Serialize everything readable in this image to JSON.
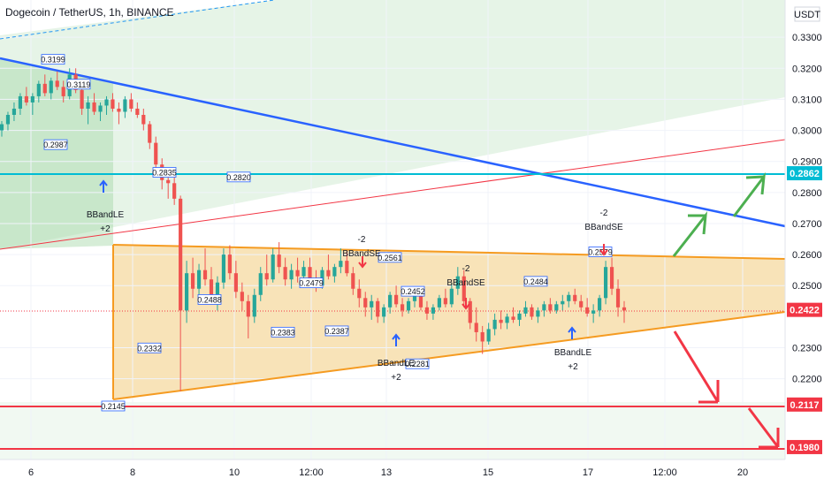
{
  "header": {
    "title": "Dogecoin / TetherUS, 1h, BINANCE",
    "currency": "USDT"
  },
  "colors": {
    "up": "#26a69a",
    "down": "#ef5350",
    "triangle_fill": "#f5d9a0",
    "triangle_edge": "#f59b21",
    "channel_fill": "#d8eed2",
    "blue_line": "#2962ff",
    "cyan_line": "#00bcd4",
    "red_level": "#f23645",
    "green_arrow": "#4caf50",
    "red_arrow": "#f23645",
    "label_border": "#2962ff"
  },
  "chart_data": {
    "type": "candlestick",
    "title": "Dogecoin / TetherUS, 1h, BINANCE",
    "ylim": [
      0.194,
      0.342
    ],
    "y_ticks": [
      "0.3300",
      "0.3200",
      "0.3100",
      "0.3000",
      "0.2900",
      "0.2800",
      "0.2700",
      "0.2600",
      "0.2500",
      "0.2300",
      "0.2200"
    ],
    "x_ticks": [
      "6",
      "8",
      "10",
      "12:00",
      "13",
      "15",
      "17",
      "12:00",
      "20"
    ],
    "price_tags": [
      {
        "label": "0.2862",
        "value": 0.2862,
        "color": "#00bcd4"
      },
      {
        "label": "0.2422",
        "value": 0.2422,
        "color": "#f23645"
      },
      {
        "label": "0.2117",
        "value": 0.2117,
        "color": "#f23645"
      },
      {
        "label": "0.1980",
        "value": 0.198,
        "color": "#f23645"
      }
    ],
    "price_labels": [
      {
        "text": "0.3199",
        "value": 0.3199
      },
      {
        "text": "0.3119",
        "value": 0.3119
      },
      {
        "text": "0.2987",
        "value": 0.2987
      },
      {
        "text": "0.2835",
        "value": 0.2835
      },
      {
        "text": "0.2820",
        "value": 0.282
      },
      {
        "text": "0.2488",
        "value": 0.2488
      },
      {
        "text": "0.2332",
        "value": 0.2332
      },
      {
        "text": "0.2383",
        "value": 0.2383
      },
      {
        "text": "0.2479",
        "value": 0.2479
      },
      {
        "text": "0.2387",
        "value": 0.2387
      },
      {
        "text": "0.2561",
        "value": 0.2561
      },
      {
        "text": "0.2452",
        "value": 0.2452
      },
      {
        "text": "0.2281",
        "value": 0.2281
      },
      {
        "text": "0.2484",
        "value": 0.2484
      },
      {
        "text": "0.2579",
        "value": 0.2579
      },
      {
        "text": "0.2145",
        "value": 0.2145
      }
    ],
    "signals": [
      "BBandLE",
      "+2",
      "-2",
      "BBandSE",
      "-2",
      "BBandSE",
      "BBandLE",
      "+2",
      "BBandLE",
      "+2",
      "-2",
      "BBandSE"
    ],
    "series": [
      {
        "values": [
          [
            0.3,
            0.303,
            0.298,
            0.302
          ],
          [
            0.302,
            0.306,
            0.3,
            0.305
          ],
          [
            0.305,
            0.309,
            0.303,
            0.307
          ],
          [
            0.307,
            0.312,
            0.305,
            0.311
          ],
          [
            0.311,
            0.314,
            0.308,
            0.309
          ],
          [
            0.309,
            0.312,
            0.305,
            0.311
          ],
          [
            0.311,
            0.316,
            0.309,
            0.315
          ],
          [
            0.315,
            0.318,
            0.311,
            0.312
          ],
          [
            0.312,
            0.317,
            0.31,
            0.316
          ],
          [
            0.316,
            0.319,
            0.313,
            0.314
          ],
          [
            0.314,
            0.316,
            0.309,
            0.311
          ],
          [
            0.311,
            0.32,
            0.31,
            0.318
          ],
          [
            0.318,
            0.32,
            0.312,
            0.313
          ],
          [
            0.313,
            0.315,
            0.305,
            0.307
          ],
          [
            0.307,
            0.311,
            0.302,
            0.309
          ],
          [
            0.309,
            0.312,
            0.305,
            0.306
          ],
          [
            0.306,
            0.309,
            0.303,
            0.308
          ],
          [
            0.308,
            0.311,
            0.305,
            0.31
          ],
          [
            0.31,
            0.312,
            0.306,
            0.307
          ],
          [
            0.307,
            0.309,
            0.302,
            0.306
          ],
          [
            0.306,
            0.311,
            0.304,
            0.31
          ],
          [
            0.31,
            0.312,
            0.306,
            0.307
          ],
          [
            0.307,
            0.309,
            0.304,
            0.305
          ],
          [
            0.305,
            0.307,
            0.3,
            0.302
          ],
          [
            0.302,
            0.303,
            0.294,
            0.296
          ],
          [
            0.296,
            0.298,
            0.286,
            0.289
          ],
          [
            0.289,
            0.291,
            0.281,
            0.284
          ],
          [
            0.284,
            0.286,
            0.278,
            0.283
          ],
          [
            0.283,
            0.285,
            0.276,
            0.278
          ],
          [
            0.278,
            0.279,
            0.216,
            0.242
          ],
          [
            0.242,
            0.258,
            0.238,
            0.254
          ],
          [
            0.254,
            0.259,
            0.246,
            0.249
          ],
          [
            0.249,
            0.257,
            0.245,
            0.255
          ],
          [
            0.255,
            0.262,
            0.25,
            0.252
          ],
          [
            0.252,
            0.256,
            0.244,
            0.246
          ],
          [
            0.246,
            0.253,
            0.242,
            0.251
          ],
          [
            0.251,
            0.262,
            0.249,
            0.26
          ],
          [
            0.26,
            0.263,
            0.252,
            0.254
          ],
          [
            0.254,
            0.258,
            0.246,
            0.248
          ],
          [
            0.248,
            0.251,
            0.242,
            0.245
          ],
          [
            0.245,
            0.247,
            0.233,
            0.24
          ],
          [
            0.24,
            0.249,
            0.238,
            0.247
          ],
          [
            0.247,
            0.256,
            0.245,
            0.254
          ],
          [
            0.254,
            0.26,
            0.25,
            0.252
          ],
          [
            0.252,
            0.262,
            0.251,
            0.26
          ],
          [
            0.26,
            0.264,
            0.254,
            0.256
          ],
          [
            0.256,
            0.259,
            0.25,
            0.252
          ],
          [
            0.252,
            0.257,
            0.249,
            0.255
          ],
          [
            0.255,
            0.259,
            0.251,
            0.253
          ],
          [
            0.253,
            0.258,
            0.25,
            0.256
          ],
          [
            0.256,
            0.259,
            0.251,
            0.252
          ],
          [
            0.252,
            0.255,
            0.248,
            0.25
          ],
          [
            0.25,
            0.256,
            0.249,
            0.255
          ],
          [
            0.255,
            0.26,
            0.252,
            0.253
          ],
          [
            0.253,
            0.257,
            0.251,
            0.256
          ],
          [
            0.256,
            0.262,
            0.254,
            0.258
          ],
          [
            0.258,
            0.261,
            0.253,
            0.254
          ],
          [
            0.254,
            0.256,
            0.247,
            0.249
          ],
          [
            0.249,
            0.252,
            0.243,
            0.246
          ],
          [
            0.246,
            0.248,
            0.24,
            0.243
          ],
          [
            0.243,
            0.247,
            0.239,
            0.245
          ],
          [
            0.245,
            0.246,
            0.238,
            0.24
          ],
          [
            0.24,
            0.244,
            0.238,
            0.243
          ],
          [
            0.243,
            0.248,
            0.241,
            0.247
          ],
          [
            0.247,
            0.25,
            0.243,
            0.244
          ],
          [
            0.244,
            0.246,
            0.24,
            0.242
          ],
          [
            0.242,
            0.246,
            0.241,
            0.245
          ],
          [
            0.245,
            0.249,
            0.243,
            0.247
          ],
          [
            0.247,
            0.249,
            0.242,
            0.243
          ],
          [
            0.243,
            0.245,
            0.239,
            0.241
          ],
          [
            0.241,
            0.244,
            0.239,
            0.243
          ],
          [
            0.243,
            0.247,
            0.242,
            0.246
          ],
          [
            0.246,
            0.249,
            0.243,
            0.244
          ],
          [
            0.244,
            0.251,
            0.243,
            0.249
          ],
          [
            0.249,
            0.256,
            0.247,
            0.253
          ],
          [
            0.253,
            0.255,
            0.243,
            0.245
          ],
          [
            0.245,
            0.246,
            0.236,
            0.238
          ],
          [
            0.238,
            0.243,
            0.232,
            0.235
          ],
          [
            0.235,
            0.237,
            0.228,
            0.232
          ],
          [
            0.232,
            0.238,
            0.231,
            0.236
          ],
          [
            0.236,
            0.241,
            0.234,
            0.239
          ],
          [
            0.239,
            0.242,
            0.236,
            0.238
          ],
          [
            0.238,
            0.241,
            0.236,
            0.24
          ],
          [
            0.24,
            0.243,
            0.238,
            0.239
          ],
          [
            0.239,
            0.242,
            0.237,
            0.241
          ],
          [
            0.241,
            0.245,
            0.24,
            0.243
          ],
          [
            0.243,
            0.244,
            0.239,
            0.24
          ],
          [
            0.24,
            0.243,
            0.238,
            0.242
          ],
          [
            0.242,
            0.245,
            0.24,
            0.244
          ],
          [
            0.244,
            0.246,
            0.241,
            0.242
          ],
          [
            0.242,
            0.245,
            0.241,
            0.244
          ],
          [
            0.244,
            0.247,
            0.242,
            0.245
          ],
          [
            0.245,
            0.248,
            0.243,
            0.247
          ],
          [
            0.247,
            0.249,
            0.244,
            0.245
          ],
          [
            0.245,
            0.247,
            0.242,
            0.243
          ],
          [
            0.243,
            0.246,
            0.24,
            0.241
          ],
          [
            0.241,
            0.244,
            0.238,
            0.242
          ],
          [
            0.242,
            0.247,
            0.24,
            0.246
          ],
          [
            0.246,
            0.258,
            0.244,
            0.256
          ],
          [
            0.256,
            0.259,
            0.247,
            0.249
          ],
          [
            0.249,
            0.252,
            0.24,
            0.243
          ],
          [
            0.243,
            0.245,
            0.238,
            0.242
          ]
        ]
      }
    ]
  }
}
